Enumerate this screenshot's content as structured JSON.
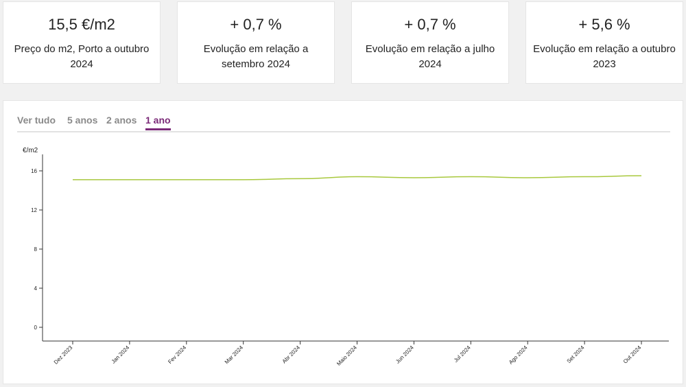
{
  "kpis": [
    {
      "value": "15,5 €/m2",
      "label": "Preço do m2, Porto a outubro 2024"
    },
    {
      "value": "+ 0,7 %",
      "label": "Evolução em relação a setembro 2024"
    },
    {
      "value": "+ 0,7 %",
      "label": "Evolução em relação a julho 2024"
    },
    {
      "value": "+ 5,6 %",
      "label": "Evolução em relação a outubro 2023"
    }
  ],
  "tabs": [
    {
      "label": "Ver tudo",
      "active": false
    },
    {
      "label": "5 anos",
      "active": false
    },
    {
      "label": "2 anos",
      "active": false
    },
    {
      "label": "1 ano",
      "active": true
    }
  ],
  "colors": {
    "line": "#a8c83c",
    "accent": "#7b2a78"
  },
  "chart_data": {
    "type": "line",
    "ylabel": "€/m2",
    "xlabel": "",
    "ylim": [
      0,
      18
    ],
    "yticks": [
      0,
      4,
      8,
      12,
      16
    ],
    "categories": [
      "Dez 2023",
      "Jan 2024",
      "Fev 2024",
      "Mar 2024",
      "Abr 2024",
      "Maio 2024",
      "Jun 2024",
      "Jul 2024",
      "Ago 2024",
      "Set 2024",
      "Out 2024"
    ],
    "series": [
      {
        "name": "Preço do m2",
        "values": [
          15.1,
          15.1,
          15.1,
          15.1,
          15.2,
          15.4,
          15.3,
          15.4,
          15.3,
          15.4,
          15.5
        ]
      }
    ]
  }
}
